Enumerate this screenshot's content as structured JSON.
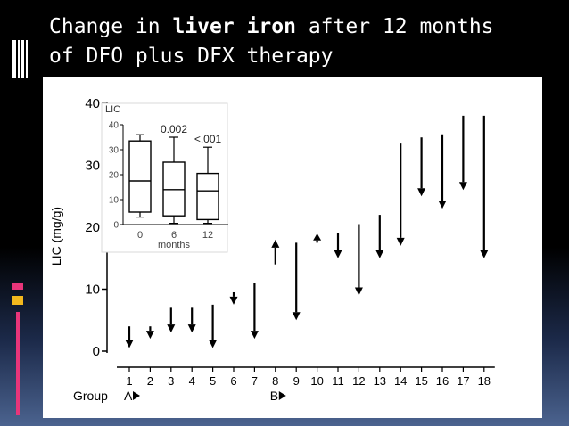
{
  "slide": {
    "title_part1": "Change in ",
    "title_bold": "liver iron",
    "title_part2": " after 12 months",
    "title_line2": "of DFO plus DFX therapy"
  },
  "chart_data": [
    {
      "type": "arrow-range",
      "ylabel": "LIC (mg/g)",
      "xlabel": "Group",
      "ylim": [
        0,
        40
      ],
      "yticks": [
        0,
        10,
        20,
        30,
        40
      ],
      "categories": [
        "1",
        "2",
        "3",
        "4",
        "5",
        "6",
        "7",
        "8",
        "9",
        "10",
        "11",
        "12",
        "13",
        "14",
        "15",
        "16",
        "17",
        "18"
      ],
      "groups": [
        {
          "label": "A",
          "start": "1"
        },
        {
          "label": "B",
          "start": "8"
        }
      ],
      "points": [
        {
          "patient": "1",
          "before": 4,
          "after": 0.5
        },
        {
          "patient": "2",
          "before": 4,
          "after": 2
        },
        {
          "patient": "3",
          "before": 7,
          "after": 3
        },
        {
          "patient": "4",
          "before": 7,
          "after": 3
        },
        {
          "patient": "5",
          "before": 7.5,
          "after": 0.5
        },
        {
          "patient": "6",
          "before": 9.5,
          "after": 7.5
        },
        {
          "patient": "7",
          "before": 11,
          "after": 2
        },
        {
          "patient": "8",
          "before": 14,
          "after": 18
        },
        {
          "patient": "9",
          "before": 17.5,
          "after": 5
        },
        {
          "patient": "10",
          "before": 17.5,
          "after": 19
        },
        {
          "patient": "11",
          "before": 19,
          "after": 15
        },
        {
          "patient": "12",
          "before": 20.5,
          "after": 9
        },
        {
          "patient": "13",
          "before": 22,
          "after": 15
        },
        {
          "patient": "14",
          "before": 33.5,
          "after": 17
        },
        {
          "patient": "15",
          "before": 34.5,
          "after": 25
        },
        {
          "patient": "16",
          "before": 35,
          "after": 23
        },
        {
          "patient": "17",
          "before": 38,
          "after": 26
        },
        {
          "patient": "18",
          "before": 38,
          "after": 15
        }
      ]
    },
    {
      "type": "boxplot",
      "ylabel": "LIC",
      "xlabel": "months",
      "ylim": [
        0,
        40
      ],
      "yticks": [
        0,
        10,
        20,
        30,
        40
      ],
      "categories": [
        "0",
        "6",
        "12"
      ],
      "boxes": [
        {
          "label": "0",
          "min": 3,
          "q1": 5,
          "median": 17.5,
          "q3": 33.5,
          "max": 36
        },
        {
          "label": "6",
          "min": 0.5,
          "q1": 3.5,
          "median": 14,
          "q3": 25,
          "max": 35
        },
        {
          "label": "12",
          "min": 0.5,
          "q1": 2,
          "median": 13.5,
          "q3": 20.5,
          "max": 31
        }
      ],
      "annotations": [
        {
          "text": "0.002",
          "at": "6"
        },
        {
          "text": "<.001",
          "at": "12"
        }
      ]
    }
  ],
  "colors": {
    "title": "#ffffff",
    "background": "#000000",
    "ink": "#000000",
    "accent_pink": "#e8357a",
    "accent_yellow": "#f3b81d"
  }
}
